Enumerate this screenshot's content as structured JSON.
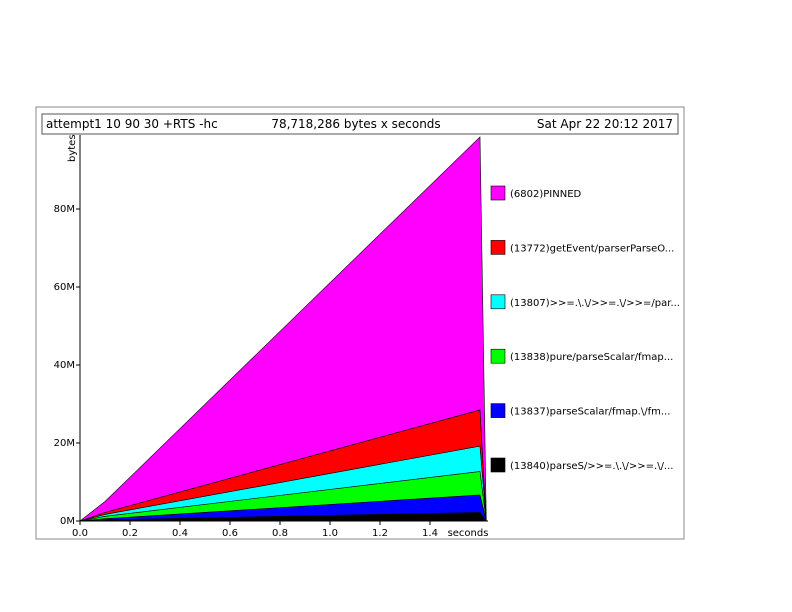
{
  "header": {
    "program": "attempt1 10 90 30 +RTS -hc",
    "total": "78,718,286 bytes x seconds",
    "date": "Sat Apr 22 20:12 2017"
  },
  "chart_data": {
    "type": "area",
    "stacked": true,
    "ylabel": "bytes",
    "xlabel": "seconds",
    "xlim": [
      0,
      1.6
    ],
    "ylim": [
      0,
      100000000
    ],
    "x_ticks": [
      "0.0",
      "0.2",
      "0.4",
      "0.6",
      "0.8",
      "1.0",
      "1.2",
      "1.4"
    ],
    "y_ticks": [
      "0M",
      "20M",
      "40M",
      "60M",
      "80M"
    ],
    "legend_position": "right",
    "x": [
      0.0,
      0.1,
      1.6,
      1.625
    ],
    "series": [
      {
        "name": "(13840)parseS/>>=.\\.\\/>>=.\\/...",
        "color": "#000000",
        "values": [
          0,
          300000,
          2200000,
          0
        ]
      },
      {
        "name": "(13837)parseScalar/fmap.\\/fm...",
        "color": "#0000ff",
        "values": [
          0,
          300000,
          4500000,
          0
        ]
      },
      {
        "name": "(13838)pure/parseScalar/fmap...",
        "color": "#00ff00",
        "values": [
          0,
          600000,
          6000000,
          0
        ]
      },
      {
        "name": "(13807)>>=.\\.\\/>>=.\\/>>=/par...",
        "color": "#00ffff",
        "values": [
          0,
          500000,
          6500000,
          0
        ]
      },
      {
        "name": "(13772)getEvent/parserParseO...",
        "color": "#ff0000",
        "values": [
          0,
          500000,
          9300000,
          0
        ]
      },
      {
        "name": "(6802)PINNED",
        "color": "#ff00ff",
        "values": [
          0,
          2800000,
          70000000,
          0
        ]
      }
    ]
  }
}
